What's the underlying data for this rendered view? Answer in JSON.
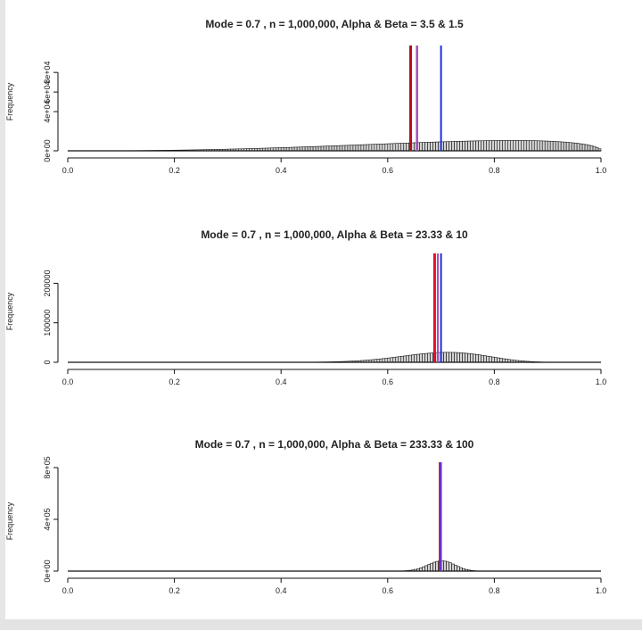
{
  "chart_data": [
    {
      "type": "bar",
      "title": "Mode = 0.7 , n = 1,000,000, Alpha & Beta = 3.5 & 1.5",
      "ylabel": "Frequency",
      "xlabel": "",
      "alpha": 3.5,
      "beta": 1.5,
      "bins": 200,
      "n": 1000000,
      "xlim": [
        0.0,
        1.0
      ],
      "ylim": [
        0,
        102000
      ],
      "x_ticks": [
        "0.0",
        "0.2",
        "0.4",
        "0.6",
        "0.8",
        "1.0"
      ],
      "y_ticks": [
        {
          "value": 0,
          "label": "0e+00"
        },
        {
          "value": 40000,
          "label": "4e+04"
        },
        {
          "value": 60000,
          "label": "6e+04"
        },
        {
          "value": 80000,
          "label": "8e+04"
        }
      ],
      "vlines": [
        {
          "x": 0.643,
          "color": "#b0101a",
          "width": 3
        },
        {
          "x": 0.655,
          "color": "#a64cc0",
          "width": 2.5
        },
        {
          "x": 0.7,
          "color": "#1b2fe0",
          "width": 2
        }
      ]
    },
    {
      "type": "bar",
      "title": "Mode = 0.7 , n = 1,000,000, Alpha & Beta = 23.33 & 10",
      "ylabel": "Frequency",
      "xlabel": "",
      "alpha": 23.33,
      "beta": 10,
      "bins": 200,
      "n": 1000000,
      "xlim": [
        0.0,
        1.0
      ],
      "ylim": [
        0,
        262000
      ],
      "x_ticks": [
        "0.0",
        "0.2",
        "0.4",
        "0.6",
        "0.8",
        "1.0"
      ],
      "y_ticks": [
        {
          "value": 0,
          "label": "0"
        },
        {
          "value": 100000,
          "label": "100000"
        },
        {
          "value": 200000,
          "label": "200000"
        }
      ],
      "vlines": [
        {
          "x": 0.688,
          "color": "#e01030",
          "width": 3
        },
        {
          "x": 0.694,
          "color": "#a64cc0",
          "width": 2
        },
        {
          "x": 0.7,
          "color": "#1b2fe0",
          "width": 2
        }
      ]
    },
    {
      "type": "bar",
      "title": "Mode = 0.7 , n = 1,000,000, Alpha & Beta = 233.33 & 100",
      "ylabel": "Frequency",
      "xlabel": "",
      "alpha": 233.33,
      "beta": 100,
      "bins": 200,
      "n": 1000000,
      "xlim": [
        0.0,
        1.0
      ],
      "ylim": [
        0,
        800000
      ],
      "x_ticks": [
        "0.0",
        "0.2",
        "0.4",
        "0.6",
        "0.8",
        "1.0"
      ],
      "y_ticks": [
        {
          "value": 0,
          "label": "0e+00"
        },
        {
          "value": 400000,
          "label": "4e+05"
        },
        {
          "value": 800000,
          "label": "8e+05"
        }
      ],
      "vlines": [
        {
          "x": 0.698,
          "color": "#b0101a",
          "width": 2.5
        },
        {
          "x": 0.699,
          "color": "#1b2fe0",
          "width": 2
        },
        {
          "x": 0.7,
          "color": "#8a33c8",
          "width": 2
        }
      ]
    }
  ]
}
